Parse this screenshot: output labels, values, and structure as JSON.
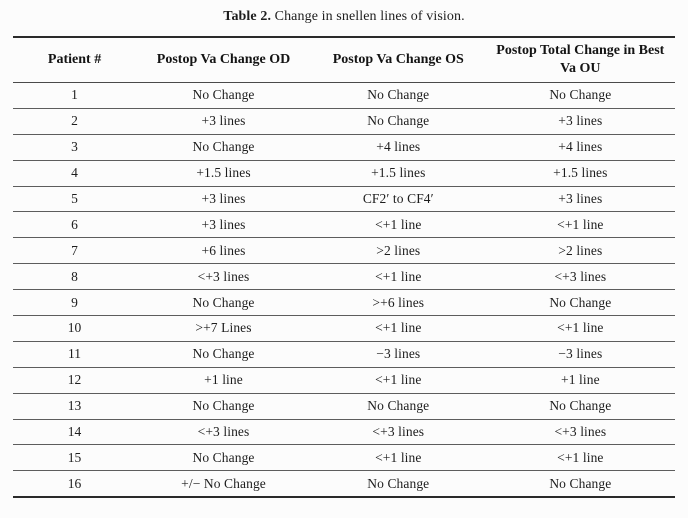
{
  "caption": {
    "label": "Table 2.",
    "text": " Change in snellen lines of vision."
  },
  "table": {
    "columns": [
      "Patient #",
      "Postop Va Change OD",
      "Postop Va Change OS",
      "Postop Total Change in Best Va OU"
    ],
    "rows": [
      [
        "1",
        "No Change",
        "No Change",
        "No Change"
      ],
      [
        "2",
        "+3 lines",
        "No Change",
        "+3 lines"
      ],
      [
        "3",
        "No Change",
        "+4 lines",
        "+4 lines"
      ],
      [
        "4",
        "+1.5 lines",
        "+1.5 lines",
        "+1.5 lines"
      ],
      [
        "5",
        "+3 lines",
        "CF2′ to CF4′",
        "+3 lines"
      ],
      [
        "6",
        "+3 lines",
        "<+1 line",
        "<+1 line"
      ],
      [
        "7",
        "+6 lines",
        ">2 lines",
        ">2 lines"
      ],
      [
        "8",
        "<+3 lines",
        "<+1 line",
        "<+3 lines"
      ],
      [
        "9",
        "No Change",
        ">+6 lines",
        "No Change"
      ],
      [
        "10",
        ">+7 Lines",
        "<+1 line",
        "<+1 line"
      ],
      [
        "11",
        "No Change",
        "−3 lines",
        "−3 lines"
      ],
      [
        "12",
        "+1 line",
        "<+1 line",
        "+1 line"
      ],
      [
        "13",
        "No Change",
        "No Change",
        "No Change"
      ],
      [
        "14",
        "<+3 lines",
        "<+3 lines",
        "<+3 lines"
      ],
      [
        "15",
        "No Change",
        "<+1 line",
        "<+1 line"
      ],
      [
        "16",
        "+/− No Change",
        "No Change",
        "No Change"
      ]
    ]
  }
}
